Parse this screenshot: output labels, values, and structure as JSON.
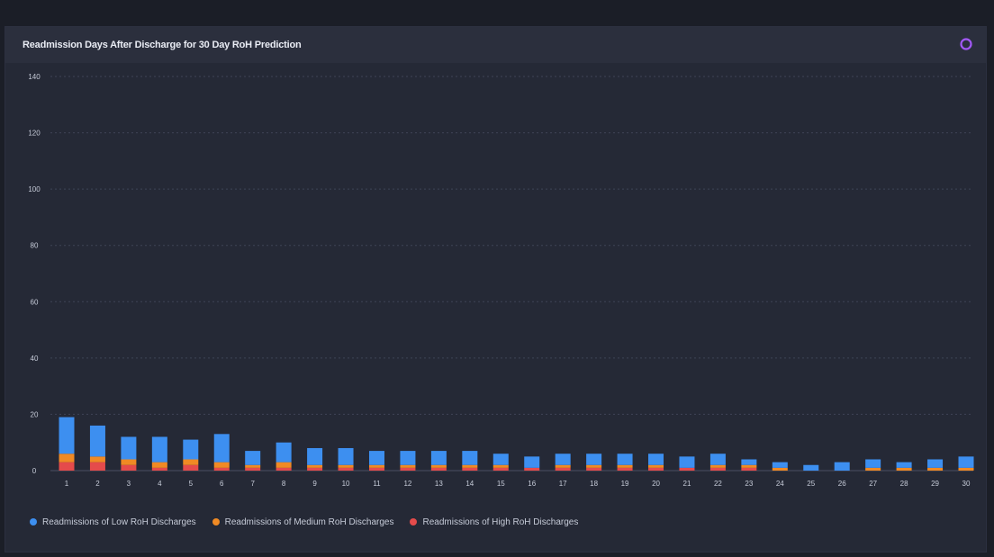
{
  "panel": {
    "title": "Readmission Days After Discharge for 30 Day RoH Prediction"
  },
  "icons": {
    "settings": "gear-icon"
  },
  "colors": {
    "low": "#3d8ff0",
    "medium": "#f08a24",
    "high": "#e54b4b",
    "grid": "#3f4456",
    "axis": "#4a4f63",
    "tick": "#c6cbd8",
    "settings": "#a259f7"
  },
  "chart_data": {
    "type": "bar",
    "stacked": true,
    "categories": [
      "1",
      "2",
      "3",
      "4",
      "5",
      "6",
      "7",
      "8",
      "9",
      "10",
      "11",
      "12",
      "13",
      "14",
      "15",
      "16",
      "17",
      "18",
      "19",
      "20",
      "21",
      "22",
      "23",
      "24",
      "25",
      "26",
      "27",
      "28",
      "29",
      "30"
    ],
    "series": [
      {
        "name": "Readmissions of High RoH Discharges",
        "color_key": "high",
        "values": [
          3,
          3,
          2,
          1,
          2,
          1,
          1,
          1,
          1,
          1,
          1,
          1,
          1,
          1,
          1,
          1,
          1,
          1,
          1,
          1,
          1,
          1,
          1,
          0,
          0,
          0,
          0,
          0,
          0,
          0
        ]
      },
      {
        "name": "Readmissions of Medium RoH Discharges",
        "color_key": "medium",
        "values": [
          3,
          2,
          2,
          2,
          2,
          2,
          1,
          2,
          1,
          1,
          1,
          1,
          1,
          1,
          1,
          0,
          1,
          1,
          1,
          1,
          0,
          1,
          1,
          1,
          0,
          0,
          1,
          1,
          1,
          1
        ]
      },
      {
        "name": "Readmissions of Low RoH Discharges",
        "color_key": "low",
        "values": [
          13,
          11,
          8,
          9,
          7,
          10,
          5,
          7,
          6,
          6,
          5,
          5,
          5,
          5,
          4,
          4,
          4,
          4,
          4,
          4,
          4,
          4,
          2,
          2,
          2,
          3,
          3,
          2,
          3,
          4
        ]
      }
    ],
    "legend_order": [
      "low",
      "medium",
      "high"
    ],
    "ylim": [
      0,
      140
    ],
    "yticks": [
      0,
      20,
      40,
      60,
      80,
      100,
      120,
      140
    ],
    "grid": true,
    "legend_position": "bottom-left",
    "xlabel": "",
    "ylabel": ""
  },
  "legend": [
    {
      "label": "Readmissions of Low RoH Discharges",
      "color_key": "low"
    },
    {
      "label": "Readmissions of Medium RoH Discharges",
      "color_key": "medium"
    },
    {
      "label": "Readmissions of High RoH Discharges",
      "color_key": "high"
    }
  ]
}
